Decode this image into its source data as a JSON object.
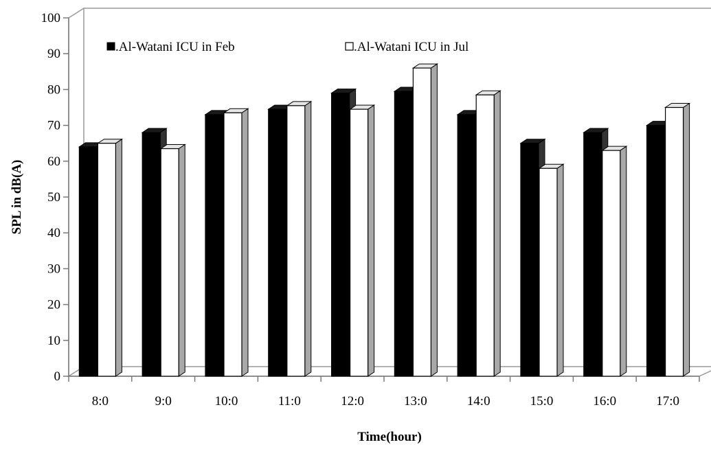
{
  "chart_data": {
    "type": "bar",
    "xlabel": "Time(hour)",
    "ylabel": "SPL in dB(A)",
    "ylim": [
      0,
      100
    ],
    "yticks": [
      0,
      10,
      20,
      30,
      40,
      50,
      60,
      70,
      80,
      90,
      100
    ],
    "categories": [
      "8:0",
      "9:0",
      "10:0",
      "11:0",
      "12:0",
      "13:0",
      "14:0",
      "15:0",
      "16:0",
      "17:0"
    ],
    "series": [
      {
        "name": ".Al-Watani ICU in Feb",
        "color": "#000000",
        "values": [
          64,
          68,
          73,
          74.5,
          79,
          79.5,
          73,
          65,
          68,
          70
        ]
      },
      {
        "name": ".Al-Watani ICU in Jul",
        "color": "#ffffff",
        "values": [
          65,
          63.5,
          73.5,
          75.5,
          74.5,
          86,
          78.5,
          58,
          63,
          75
        ]
      }
    ],
    "legend_position": "top-left",
    "grid": false,
    "style": "3d-clustered-columns"
  }
}
